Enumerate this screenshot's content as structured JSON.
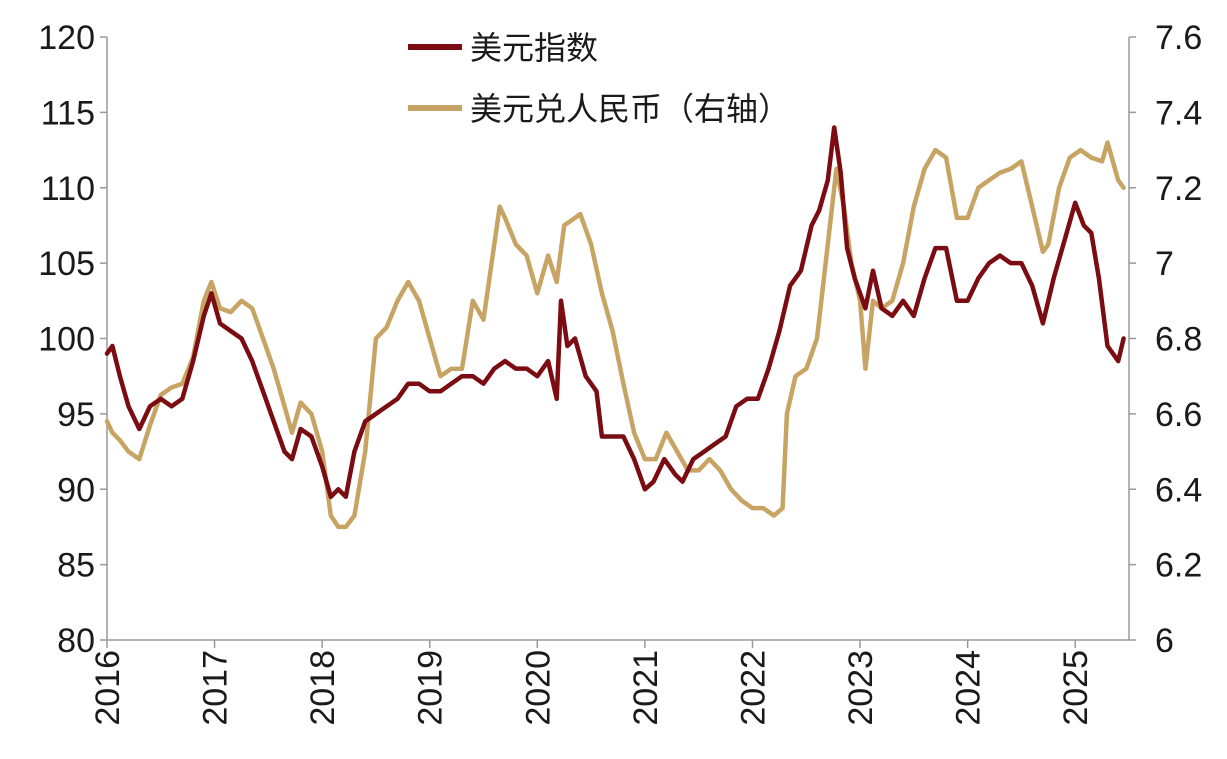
{
  "chart_data": {
    "type": "line",
    "title": "",
    "xlabel": "",
    "x_ticks": [
      "2016",
      "2017",
      "2018",
      "2019",
      "2020",
      "2021",
      "2022",
      "2023",
      "2024",
      "2025"
    ],
    "x_range": [
      2016.0,
      2025.5
    ],
    "y_left": {
      "label": "",
      "range": [
        80,
        120
      ],
      "ticks": [
        "80",
        "85",
        "90",
        "95",
        "100",
        "105",
        "110",
        "115",
        "120"
      ]
    },
    "y_right": {
      "label": "",
      "range": [
        6.0,
        7.6
      ],
      "ticks": [
        "6",
        "6.2",
        "6.4",
        "6.6",
        "6.8",
        "7",
        "7.2",
        "7.4",
        "7.6"
      ]
    },
    "legend": {
      "placement": "top-center"
    },
    "grid": false,
    "series": [
      {
        "name": "美元指数",
        "axis": "left",
        "color": "#7a0c12",
        "points": [
          [
            2016.0,
            99.0
          ],
          [
            2016.05,
            99.5
          ],
          [
            2016.12,
            97.5
          ],
          [
            2016.2,
            95.5
          ],
          [
            2016.3,
            94.0
          ],
          [
            2016.4,
            95.5
          ],
          [
            2016.5,
            96.0
          ],
          [
            2016.6,
            95.5
          ],
          [
            2016.7,
            96.0
          ],
          [
            2016.8,
            98.5
          ],
          [
            2016.9,
            101.5
          ],
          [
            2016.97,
            103.0
          ],
          [
            2017.05,
            101.0
          ],
          [
            2017.15,
            100.5
          ],
          [
            2017.25,
            100.0
          ],
          [
            2017.35,
            98.5
          ],
          [
            2017.45,
            96.5
          ],
          [
            2017.55,
            94.5
          ],
          [
            2017.65,
            92.5
          ],
          [
            2017.72,
            92.0
          ],
          [
            2017.8,
            94.0
          ],
          [
            2017.9,
            93.5
          ],
          [
            2018.0,
            91.5
          ],
          [
            2018.08,
            89.5
          ],
          [
            2018.15,
            90.0
          ],
          [
            2018.22,
            89.5
          ],
          [
            2018.3,
            92.5
          ],
          [
            2018.4,
            94.5
          ],
          [
            2018.5,
            95.0
          ],
          [
            2018.6,
            95.5
          ],
          [
            2018.7,
            96.0
          ],
          [
            2018.8,
            97.0
          ],
          [
            2018.9,
            97.0
          ],
          [
            2019.0,
            96.5
          ],
          [
            2019.1,
            96.5
          ],
          [
            2019.2,
            97.0
          ],
          [
            2019.3,
            97.5
          ],
          [
            2019.4,
            97.5
          ],
          [
            2019.5,
            97.0
          ],
          [
            2019.6,
            98.0
          ],
          [
            2019.7,
            98.5
          ],
          [
            2019.8,
            98.0
          ],
          [
            2019.9,
            98.0
          ],
          [
            2020.0,
            97.5
          ],
          [
            2020.1,
            98.5
          ],
          [
            2020.18,
            96.0
          ],
          [
            2020.22,
            102.5
          ],
          [
            2020.28,
            99.5
          ],
          [
            2020.35,
            100.0
          ],
          [
            2020.45,
            97.5
          ],
          [
            2020.55,
            96.5
          ],
          [
            2020.6,
            93.5
          ],
          [
            2020.7,
            93.5
          ],
          [
            2020.8,
            93.5
          ],
          [
            2020.9,
            92.0
          ],
          [
            2021.0,
            90.0
          ],
          [
            2021.08,
            90.5
          ],
          [
            2021.18,
            92.0
          ],
          [
            2021.28,
            91.0
          ],
          [
            2021.35,
            90.5
          ],
          [
            2021.45,
            92.0
          ],
          [
            2021.55,
            92.5
          ],
          [
            2021.65,
            93.0
          ],
          [
            2021.75,
            93.5
          ],
          [
            2021.85,
            95.5
          ],
          [
            2021.95,
            96.0
          ],
          [
            2022.05,
            96.0
          ],
          [
            2022.15,
            98.0
          ],
          [
            2022.25,
            100.5
          ],
          [
            2022.35,
            103.5
          ],
          [
            2022.45,
            104.5
          ],
          [
            2022.55,
            107.5
          ],
          [
            2022.62,
            108.5
          ],
          [
            2022.7,
            110.5
          ],
          [
            2022.76,
            114.0
          ],
          [
            2022.82,
            111.0
          ],
          [
            2022.88,
            106.0
          ],
          [
            2022.95,
            104.0
          ],
          [
            2023.05,
            102.0
          ],
          [
            2023.12,
            104.5
          ],
          [
            2023.2,
            102.0
          ],
          [
            2023.3,
            101.5
          ],
          [
            2023.4,
            102.5
          ],
          [
            2023.5,
            101.5
          ],
          [
            2023.6,
            104.0
          ],
          [
            2023.7,
            106.0
          ],
          [
            2023.8,
            106.0
          ],
          [
            2023.9,
            102.5
          ],
          [
            2024.0,
            102.5
          ],
          [
            2024.1,
            104.0
          ],
          [
            2024.2,
            105.0
          ],
          [
            2024.3,
            105.5
          ],
          [
            2024.4,
            105.0
          ],
          [
            2024.5,
            105.0
          ],
          [
            2024.6,
            103.5
          ],
          [
            2024.7,
            101.0
          ],
          [
            2024.8,
            104.0
          ],
          [
            2024.9,
            106.5
          ],
          [
            2025.0,
            109.0
          ],
          [
            2025.08,
            107.5
          ],
          [
            2025.15,
            107.0
          ],
          [
            2025.22,
            104.0
          ],
          [
            2025.3,
            99.5
          ],
          [
            2025.35,
            99.0
          ],
          [
            2025.4,
            98.5
          ],
          [
            2025.45,
            100.0
          ]
        ]
      },
      {
        "name": "美元兑人民币（右轴）",
        "axis": "right",
        "color": "#c8a464",
        "points": [
          [
            2016.0,
            6.58
          ],
          [
            2016.05,
            6.55
          ],
          [
            2016.12,
            6.53
          ],
          [
            2016.2,
            6.5
          ],
          [
            2016.3,
            6.48
          ],
          [
            2016.4,
            6.57
          ],
          [
            2016.5,
            6.65
          ],
          [
            2016.6,
            6.67
          ],
          [
            2016.7,
            6.68
          ],
          [
            2016.8,
            6.75
          ],
          [
            2016.9,
            6.9
          ],
          [
            2016.97,
            6.95
          ],
          [
            2017.05,
            6.88
          ],
          [
            2017.15,
            6.87
          ],
          [
            2017.25,
            6.9
          ],
          [
            2017.35,
            6.88
          ],
          [
            2017.45,
            6.8
          ],
          [
            2017.55,
            6.72
          ],
          [
            2017.65,
            6.62
          ],
          [
            2017.72,
            6.55
          ],
          [
            2017.8,
            6.63
          ],
          [
            2017.9,
            6.6
          ],
          [
            2018.0,
            6.5
          ],
          [
            2018.08,
            6.33
          ],
          [
            2018.15,
            6.3
          ],
          [
            2018.22,
            6.3
          ],
          [
            2018.3,
            6.33
          ],
          [
            2018.4,
            6.5
          ],
          [
            2018.5,
            6.8
          ],
          [
            2018.6,
            6.83
          ],
          [
            2018.7,
            6.9
          ],
          [
            2018.8,
            6.95
          ],
          [
            2018.9,
            6.9
          ],
          [
            2019.0,
            6.8
          ],
          [
            2019.1,
            6.7
          ],
          [
            2019.2,
            6.72
          ],
          [
            2019.3,
            6.72
          ],
          [
            2019.4,
            6.9
          ],
          [
            2019.5,
            6.85
          ],
          [
            2019.6,
            7.05
          ],
          [
            2019.65,
            7.15
          ],
          [
            2019.7,
            7.12
          ],
          [
            2019.8,
            7.05
          ],
          [
            2019.9,
            7.02
          ],
          [
            2020.0,
            6.92
          ],
          [
            2020.1,
            7.02
          ],
          [
            2020.18,
            6.95
          ],
          [
            2020.25,
            7.1
          ],
          [
            2020.35,
            7.12
          ],
          [
            2020.4,
            7.13
          ],
          [
            2020.5,
            7.05
          ],
          [
            2020.6,
            6.92
          ],
          [
            2020.7,
            6.82
          ],
          [
            2020.8,
            6.68
          ],
          [
            2020.9,
            6.55
          ],
          [
            2021.0,
            6.48
          ],
          [
            2021.1,
            6.48
          ],
          [
            2021.2,
            6.55
          ],
          [
            2021.3,
            6.5
          ],
          [
            2021.4,
            6.45
          ],
          [
            2021.5,
            6.45
          ],
          [
            2021.6,
            6.48
          ],
          [
            2021.7,
            6.45
          ],
          [
            2021.8,
            6.4
          ],
          [
            2021.9,
            6.37
          ],
          [
            2022.0,
            6.35
          ],
          [
            2022.1,
            6.35
          ],
          [
            2022.2,
            6.33
          ],
          [
            2022.28,
            6.35
          ],
          [
            2022.32,
            6.6
          ],
          [
            2022.4,
            6.7
          ],
          [
            2022.5,
            6.72
          ],
          [
            2022.6,
            6.8
          ],
          [
            2022.7,
            7.05
          ],
          [
            2022.78,
            7.25
          ],
          [
            2022.85,
            7.15
          ],
          [
            2022.92,
            7.0
          ],
          [
            2023.0,
            6.9
          ],
          [
            2023.05,
            6.72
          ],
          [
            2023.12,
            6.9
          ],
          [
            2023.2,
            6.88
          ],
          [
            2023.3,
            6.9
          ],
          [
            2023.4,
            7.0
          ],
          [
            2023.5,
            7.15
          ],
          [
            2023.6,
            7.25
          ],
          [
            2023.7,
            7.3
          ],
          [
            2023.8,
            7.28
          ],
          [
            2023.9,
            7.12
          ],
          [
            2024.0,
            7.12
          ],
          [
            2024.1,
            7.2
          ],
          [
            2024.2,
            7.22
          ],
          [
            2024.3,
            7.24
          ],
          [
            2024.4,
            7.25
          ],
          [
            2024.5,
            7.27
          ],
          [
            2024.6,
            7.15
          ],
          [
            2024.7,
            7.03
          ],
          [
            2024.75,
            7.05
          ],
          [
            2024.85,
            7.2
          ],
          [
            2024.95,
            7.28
          ],
          [
            2025.05,
            7.3
          ],
          [
            2025.15,
            7.28
          ],
          [
            2025.25,
            7.27
          ],
          [
            2025.3,
            7.32
          ],
          [
            2025.4,
            7.22
          ],
          [
            2025.45,
            7.2
          ]
        ]
      }
    ]
  }
}
